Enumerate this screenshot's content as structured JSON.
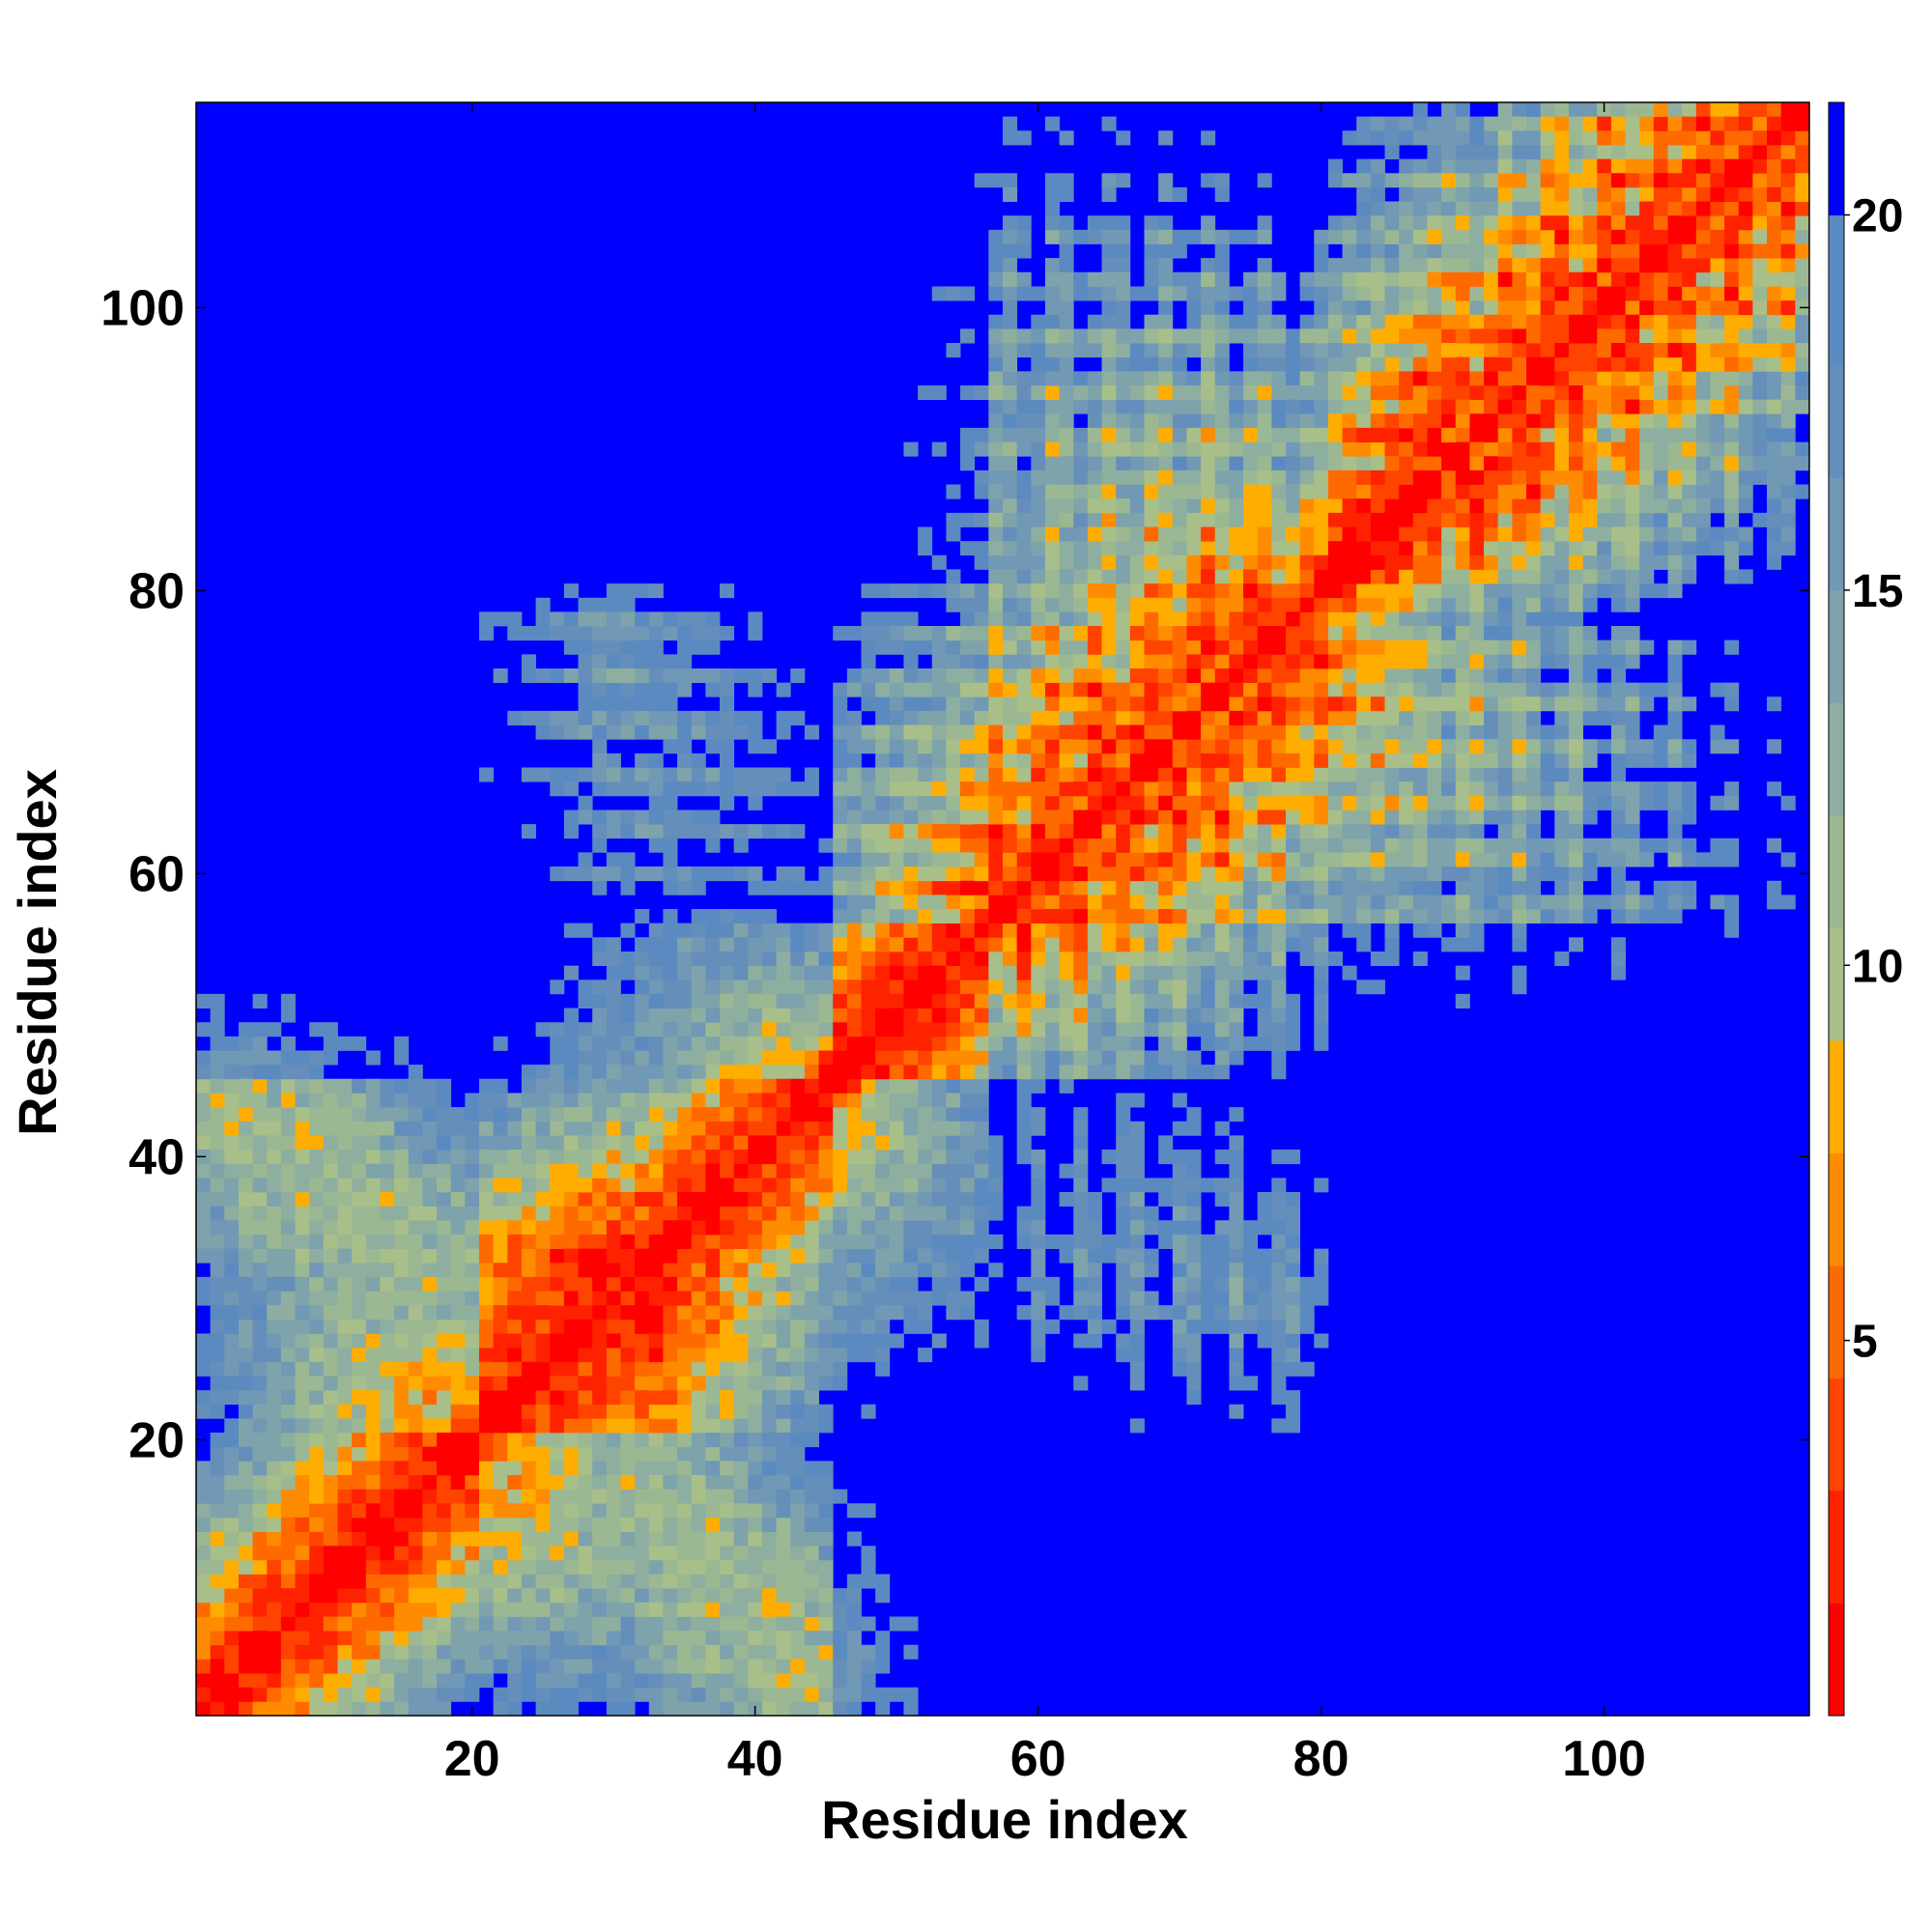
{
  "chart_data": {
    "type": "heatmap",
    "title": "",
    "xlabel": "Residue index",
    "ylabel": "Residue index",
    "n_residues": 114,
    "xlim": [
      0.5,
      114.5
    ],
    "ylim": [
      0.5,
      114.5
    ],
    "x_ticks": [
      20,
      40,
      60,
      80,
      100
    ],
    "y_ticks": [
      20,
      40,
      60,
      80,
      100
    ],
    "colorbar": {
      "ticks": [
        5,
        10,
        15,
        20
      ],
      "range": [
        0,
        21.5
      ],
      "levels": [
        {
          "max": 1.5,
          "color": "#ff0000"
        },
        {
          "max": 3.0,
          "color": "#ff2200"
        },
        {
          "max": 4.5,
          "color": "#ff4400"
        },
        {
          "max": 6.0,
          "color": "#ff6a00"
        },
        {
          "max": 7.5,
          "color": "#ff8c00"
        },
        {
          "max": 9.0,
          "color": "#ffad00"
        },
        {
          "max": 10.5,
          "color": "#a8bf8a"
        },
        {
          "max": 12.0,
          "color": "#9bb893"
        },
        {
          "max": 13.5,
          "color": "#8eaea0"
        },
        {
          "max": 15.0,
          "color": "#7ea3ab"
        },
        {
          "max": 16.5,
          "color": "#7198b4"
        },
        {
          "max": 18.0,
          "color": "#658fba"
        },
        {
          "max": 20.0,
          "color": "#5b8ac0"
        },
        {
          "max": 21.5,
          "color": "#0000ff"
        }
      ]
    },
    "contact_map": {
      "cutoff": 20,
      "description_points": {
        "diagonal": "distance ~0-4 along i=j",
        "helix_segments": [
          [
            57,
            80
          ],
          [
            88,
            114
          ]
        ],
        "strand_pairs": [
          {
            "i": [
              17,
              30
            ],
            "j": [
              40,
              53
            ],
            "min_distance": 5
          },
          {
            "i": [
              82,
              95
            ],
            "j": [
              95,
              112
            ],
            "min_distance": 5
          },
          {
            "i": [
              5,
              20
            ],
            "j": [
              30,
              45
            ],
            "min_distance": 6
          }
        ]
      }
    }
  }
}
